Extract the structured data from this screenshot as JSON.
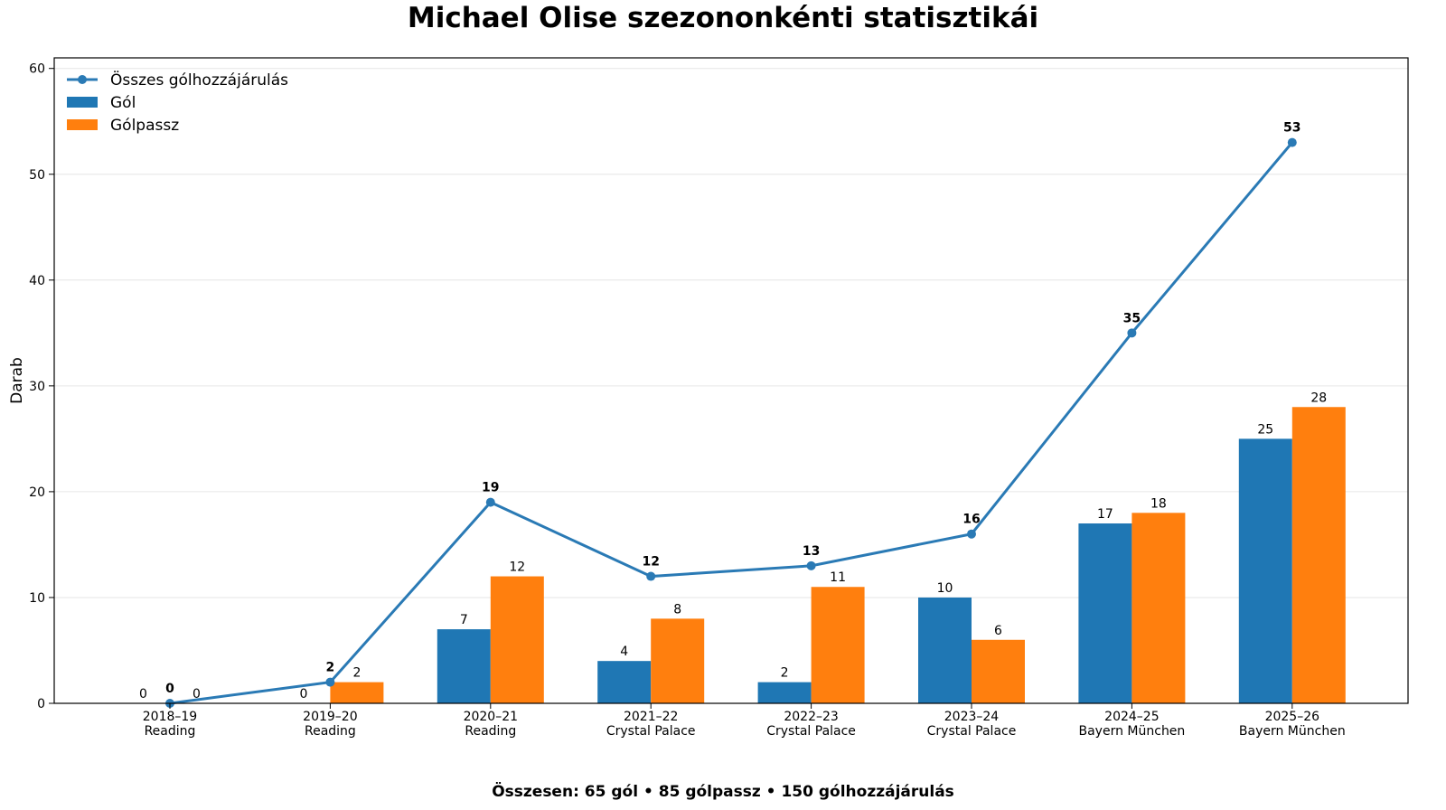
{
  "chart_data": {
    "type": "bar",
    "title": "Michael Olise szezononkénti statisztikái",
    "ylabel": "Darab",
    "xlabel": "",
    "footer": "Összesen: 65 gól • 85 gólpassz • 150 gólhozzájárulás",
    "ylim": [
      0,
      61
    ],
    "yticks": [
      0,
      10,
      20,
      30,
      40,
      50,
      60
    ],
    "grid": "horizontal",
    "legend_position": "top-left",
    "categories": [
      {
        "season": "2018–19",
        "club": "Reading"
      },
      {
        "season": "2019–20",
        "club": "Reading"
      },
      {
        "season": "2020–21",
        "club": "Reading"
      },
      {
        "season": "2021–22",
        "club": "Crystal Palace"
      },
      {
        "season": "2022–23",
        "club": "Crystal Palace"
      },
      {
        "season": "2023–24",
        "club": "Crystal Palace"
      },
      {
        "season": "2024–25",
        "club": "Bayern München"
      },
      {
        "season": "2025–26",
        "club": "Bayern München"
      }
    ],
    "series": [
      {
        "name": "Gól",
        "type": "bar",
        "color": "#1f77b4",
        "values": [
          0,
          0,
          7,
          4,
          2,
          10,
          17,
          25
        ]
      },
      {
        "name": "Gólpassz",
        "type": "bar",
        "color": "#ff7f0e",
        "values": [
          0,
          2,
          12,
          8,
          11,
          6,
          18,
          28
        ]
      },
      {
        "name": "Összes gólhozzájárulás",
        "type": "line",
        "color": "#2a7ab5",
        "values": [
          0,
          2,
          19,
          12,
          13,
          16,
          35,
          53
        ]
      }
    ]
  }
}
